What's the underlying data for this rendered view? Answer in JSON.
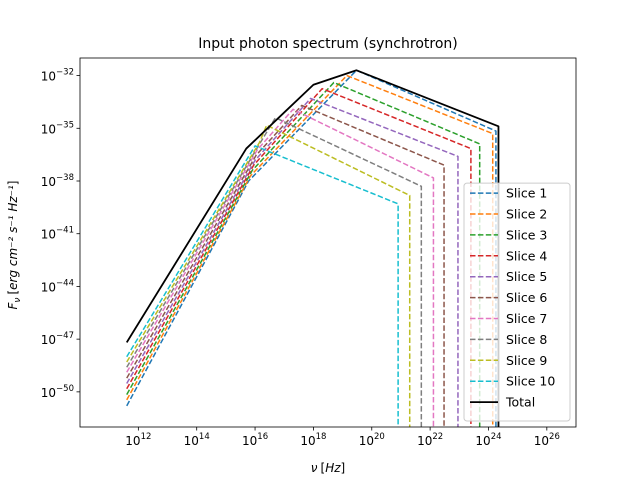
{
  "chart_data": {
    "type": "line",
    "title": "Input photon spectrum (synchrotron)",
    "xlabel_symbol": "ν",
    "xlabel_unit": "Hz",
    "ylabel_symbol": "F",
    "ylabel_sub": "ν",
    "ylabel_unit": "erg cm⁻² s⁻¹ Hz⁻¹",
    "xscale": "log",
    "yscale": "log",
    "xlim": [
      10000000000.0,
      1e+27
    ],
    "ylim": [
      1e-52,
      1e-31
    ],
    "xticks": [
      {
        "base": "10",
        "exp": "12",
        "value": 1000000000000.0
      },
      {
        "base": "10",
        "exp": "14",
        "value": 100000000000000.0
      },
      {
        "base": "10",
        "exp": "16",
        "value": 1e+16
      },
      {
        "base": "10",
        "exp": "18",
        "value": 1e+18
      },
      {
        "base": "10",
        "exp": "20",
        "value": 1e+20
      },
      {
        "base": "10",
        "exp": "22",
        "value": 1e+22
      },
      {
        "base": "10",
        "exp": "24",
        "value": 1e+24
      },
      {
        "base": "10",
        "exp": "26",
        "value": 1e+26
      }
    ],
    "yticks": [
      {
        "base": "10",
        "exp": "−32",
        "value": 1e-32
      },
      {
        "base": "10",
        "exp": "−35",
        "value": 1e-35
      },
      {
        "base": "10",
        "exp": "−38",
        "value": 1e-38
      },
      {
        "base": "10",
        "exp": "−41",
        "value": 1e-41
      },
      {
        "base": "10",
        "exp": "−44",
        "value": 1e-44
      },
      {
        "base": "10",
        "exp": "−47",
        "value": 1e-47
      },
      {
        "base": "10",
        "exp": "−50",
        "value": 1e-50
      }
    ],
    "legend_position": "lower-right",
    "series": [
      {
        "name": "Slice 1",
        "color": "#1f77b4",
        "dash": true,
        "x": [
          400000000000.0,
          6000000000000000.0,
          3e+19,
          1.8e+24,
          1.8e+24
        ],
        "y": [
          1.6e-51,
          1e-38,
          2e-32,
          7e-36,
          1e-52
        ]
      },
      {
        "name": "Slice 2",
        "color": "#ff7f0e",
        "dash": true,
        "x": [
          400000000000.0,
          7000000000000000.0,
          1.4e+19,
          1.4e+24,
          1.4e+24
        ],
        "y": [
          3.5e-51,
          2e-38,
          1e-32,
          5e-36,
          1e-52
        ]
      },
      {
        "name": "Slice 3",
        "color": "#2ca02c",
        "dash": true,
        "x": [
          400000000000.0,
          8000000000000000.0,
          5e+18,
          5e+23,
          5e+23
        ],
        "y": [
          7e-51,
          4e-38,
          4e-33,
          1.3e-36,
          1e-52
        ]
      },
      {
        "name": "Slice 4",
        "color": "#d62728",
        "dash": true,
        "x": [
          400000000000.0,
          9000000000000000.0,
          2e+18,
          2.5e+23,
          2.5e+23
        ],
        "y": [
          1.5e-50,
          8e-38,
          1.8e-33,
          7e-37,
          1e-52
        ]
      },
      {
        "name": "Slice 5",
        "color": "#9467bd",
        "dash": true,
        "x": [
          400000000000.0,
          1e+16,
          8e+17,
          9e+22,
          9e+22
        ],
        "y": [
          3e-50,
          1.5e-37,
          5e-34,
          2.5e-37,
          1e-52
        ]
      },
      {
        "name": "Slice 6",
        "color": "#8c564b",
        "dash": true,
        "x": [
          400000000000.0,
          1.1e+16,
          4e+17,
          3e+22,
          3e+22
        ],
        "y": [
          6e-50,
          3e-37,
          2e-34,
          8e-38,
          1e-52
        ]
      },
      {
        "name": "Slice 7",
        "color": "#e377c2",
        "dash": true,
        "x": [
          400000000000.0,
          1.2e+16,
          2e+17,
          1.3e+22,
          1.3e+22
        ],
        "y": [
          1.3e-49,
          6e-37,
          1.2e-34,
          1.5e-38,
          1e-52
        ]
      },
      {
        "name": "Slice 8",
        "color": "#7f7f7f",
        "dash": true,
        "x": [
          400000000000.0,
          1.3e+16,
          5e+16,
          5e+21,
          5e+21
        ],
        "y": [
          2.5e-49,
          1e-36,
          4e-35,
          5e-39,
          1e-52
        ]
      },
      {
        "name": "Slice 9",
        "color": "#bcbd22",
        "dash": true,
        "x": [
          400000000000.0,
          1.4e+16,
          2.5e+16,
          2e+21,
          2e+21
        ],
        "y": [
          5e-49,
          1.5e-36,
          1.5e-35,
          1.5e-39,
          1e-52
        ]
      },
      {
        "name": "Slice 10",
        "color": "#17becf",
        "dash": true,
        "x": [
          400000000000.0,
          1e+16,
          8e+20,
          8e+20
        ],
        "y": [
          1e-48,
          1e-36,
          5e-40,
          1e-52
        ]
      },
      {
        "name": "Total",
        "color": "#000000",
        "dash": false,
        "x": [
          400000000000.0,
          5000000000000000.0,
          1e+17,
          1e+18,
          3e+19,
          2.2e+24,
          2.2e+24
        ],
        "y": [
          6.5e-48,
          7e-37,
          8e-35,
          3e-33,
          2e-32,
          1.3e-35,
          1e-52
        ]
      }
    ]
  }
}
